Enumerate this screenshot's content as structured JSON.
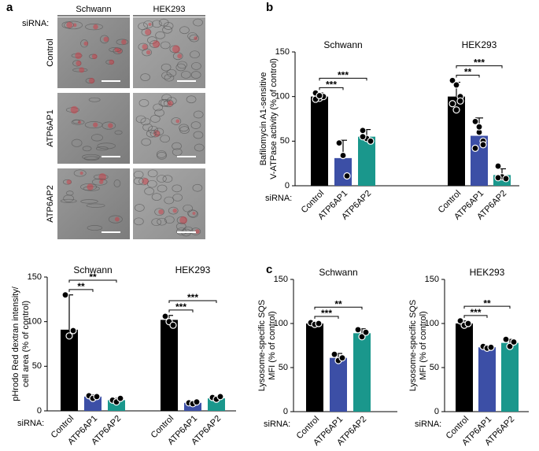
{
  "panel_labels": [
    "a",
    "b",
    "c"
  ],
  "images": {
    "columns": [
      "Schwann",
      "HEK293"
    ],
    "rows": [
      "Control",
      "ATP6AP1",
      "ATP6AP2"
    ],
    "row_label": "siRNA:"
  },
  "chart_data": [
    {
      "type": "bar",
      "ylabel": [
        "pHrodo Red dextran intensity/",
        "cell area (% of control)"
      ],
      "row_label": "siRNA:",
      "categories": [
        "Control",
        "ATP6AP1",
        "ATP6AP2"
      ],
      "colors": [
        "#000000",
        "#3c4fa6",
        "#1a978c"
      ],
      "ylim": [
        0,
        150
      ],
      "yticks": [
        0,
        50,
        100,
        150
      ],
      "groups": [
        {
          "name": "Schwann",
          "values": [
            91,
            16,
            12
          ],
          "errors": [
            39,
            2,
            2
          ],
          "points": [
            [
              130,
              84,
              90
            ],
            [
              17,
              14,
              16
            ],
            [
              12,
              10,
              14
            ]
          ],
          "comparisons": [
            {
              "pair": [
                "Control",
                "ATP6AP1"
              ],
              "label": "**"
            },
            {
              "pair": [
                "Control",
                "ATP6AP2"
              ],
              "label": "**"
            }
          ]
        },
        {
          "name": "HEK293",
          "values": [
            102,
            9,
            14
          ],
          "errors": [
            5,
            1,
            2
          ],
          "points": [
            [
              106,
              100,
              96
            ],
            [
              9,
              8,
              10
            ],
            [
              15,
              13,
              16
            ]
          ],
          "comparisons": [
            {
              "pair": [
                "Control",
                "ATP6AP1"
              ],
              "label": "***"
            },
            {
              "pair": [
                "Control",
                "ATP6AP2"
              ],
              "label": "***"
            }
          ]
        }
      ]
    },
    {
      "type": "bar",
      "ylabel": [
        "Bafilomycin A1-sensitive",
        "V-ATPase activity (% of control)"
      ],
      "row_label": "siRNA:",
      "categories": [
        "Control",
        "ATP6AP1",
        "ATP6AP2"
      ],
      "colors": [
        "#000000",
        "#3c4fa6",
        "#1a978c"
      ],
      "ylim": [
        0,
        150
      ],
      "yticks": [
        0,
        50,
        100,
        150
      ],
      "groups": [
        {
          "name": "Schwann",
          "values": [
            100,
            31,
            55
          ],
          "errors": [
            4,
            20,
            8
          ],
          "points": [
            [
              104,
              98,
              100,
              97,
              101
            ],
            [
              48,
              34,
              11
            ],
            [
              62,
              53,
              50,
              55
            ]
          ],
          "comparisons": [
            {
              "pair": [
                "Control",
                "ATP6AP1"
              ],
              "label": "***"
            },
            {
              "pair": [
                "Control",
                "ATP6AP2"
              ],
              "label": "***"
            }
          ]
        },
        {
          "name": "HEK293",
          "values": [
            100,
            56,
            12
          ],
          "errors": [
            16,
            20,
            7
          ],
          "points": [
            [
              118,
              113,
              100,
              92,
              85,
              95
            ],
            [
              72,
              60,
              50,
              42,
              66,
              46
            ],
            [
              22,
              10,
              8,
              9
            ]
          ],
          "comparisons": [
            {
              "pair": [
                "Control",
                "ATP6AP1"
              ],
              "label": "**"
            },
            {
              "pair": [
                "Control",
                "ATP6AP2"
              ],
              "label": "***"
            }
          ]
        }
      ]
    },
    {
      "type": "bar",
      "ylabel": [
        "Lysosome-specific SQS",
        "MFI (% of control)"
      ],
      "row_label": "siRNA:",
      "categories": [
        "Control",
        "ATP6AP1",
        "ATP6AP2"
      ],
      "colors": [
        "#000000",
        "#3c4fa6",
        "#1a978c"
      ],
      "ylim": [
        0,
        150
      ],
      "yticks": [
        0,
        50,
        100,
        150
      ],
      "groups": [
        {
          "name": "Schwann",
          "values": [
            100,
            61,
            89
          ],
          "errors": [
            2,
            5,
            5
          ],
          "points": [
            [
              101,
              99,
              100
            ],
            [
              65,
              58,
              61
            ],
            [
              93,
              85,
              90
            ]
          ],
          "comparisons": [
            {
              "pair": [
                "Control",
                "ATP6AP1"
              ],
              "label": "***"
            },
            {
              "pair": [
                "Control",
                "ATP6AP2"
              ],
              "label": "**"
            }
          ]
        }
      ]
    },
    {
      "type": "bar",
      "ylabel": [
        "Lysosome-specific SQS",
        "MFI (% of control)"
      ],
      "row_label": "siRNA:",
      "categories": [
        "Control",
        "ATP6AP1",
        "ATP6AP2"
      ],
      "colors": [
        "#000000",
        "#3c4fa6",
        "#1a978c"
      ],
      "ylim": [
        0,
        150
      ],
      "yticks": [
        0,
        50,
        100,
        150
      ],
      "groups": [
        {
          "name": "HEK293",
          "values": [
            100,
            73,
            78
          ],
          "errors": [
            3,
            2,
            4
          ],
          "points": [
            [
              103,
              98,
              100
            ],
            [
              74,
              72,
              73
            ],
            [
              82,
              74,
              79
            ]
          ],
          "comparisons": [
            {
              "pair": [
                "Control",
                "ATP6AP1"
              ],
              "label": "***"
            },
            {
              "pair": [
                "Control",
                "ATP6AP2"
              ],
              "label": "**"
            }
          ]
        }
      ]
    }
  ]
}
